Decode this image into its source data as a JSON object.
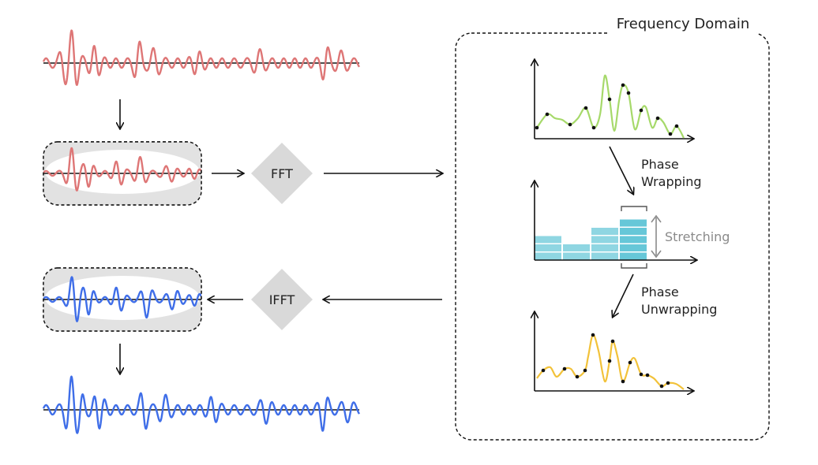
{
  "frequency_domain": {
    "title": "Frequency Domain"
  },
  "fft": {
    "label": "FFT"
  },
  "ifft": {
    "label": "IFFT"
  },
  "phase_wrapping": {
    "line1": "Phase",
    "line2": "Wrapping"
  },
  "phase_unwrapping": {
    "line1": "Phase",
    "line2": "Unwrapping"
  },
  "stretching": {
    "label": "Stretching"
  },
  "colors": {
    "input_wave": "#de7676",
    "output_wave": "#3f6ee8",
    "spectrum_green": "#a6d96a",
    "spectrum_yellow": "#f2c23a",
    "bars": "#8fd6e2",
    "bars_dark": "#66c7d8",
    "diamond": "#d9d9d9",
    "window": "#e2e2e2"
  }
}
